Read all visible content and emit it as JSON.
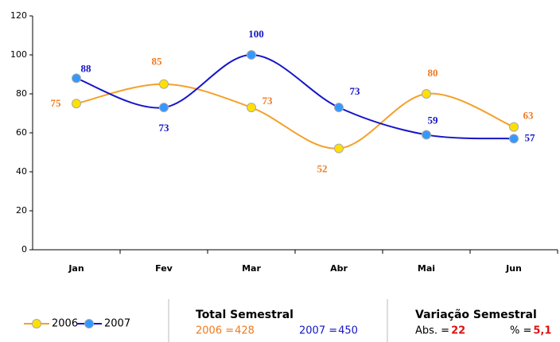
{
  "chart_data": {
    "type": "line",
    "categories": [
      "Jan",
      "Fev",
      "Mar",
      "Abr",
      "Mai",
      "Jun"
    ],
    "series": [
      {
        "name": "2006",
        "color": "#f5a02a",
        "marker_color": "#ffe000",
        "label_color": "#f07a1e",
        "values": [
          75,
          85,
          73,
          52,
          80,
          63
        ]
      },
      {
        "name": "2007",
        "color": "#1515c8",
        "marker_color": "#3399ff",
        "label_color": "#1515c8",
        "values": [
          88,
          73,
          100,
          73,
          59,
          57
        ]
      }
    ],
    "ylim": [
      0,
      120
    ],
    "yticks": [
      0,
      20,
      40,
      60,
      80,
      100,
      120
    ],
    "grid": false,
    "legend": "bottom-left",
    "total": {
      "title": "Total Semestral",
      "items": [
        {
          "label": "2006 =",
          "value": 428,
          "color": "#f07a1e"
        },
        {
          "label": "2007 =",
          "value": 450,
          "color": "#1515c8"
        }
      ]
    },
    "variation": {
      "title": "Variação Semestral",
      "items": [
        {
          "label": "Abs. =",
          "value": 22
        },
        {
          "label": "% =",
          "value": 5.1,
          "value_label": "5,1"
        }
      ]
    }
  }
}
